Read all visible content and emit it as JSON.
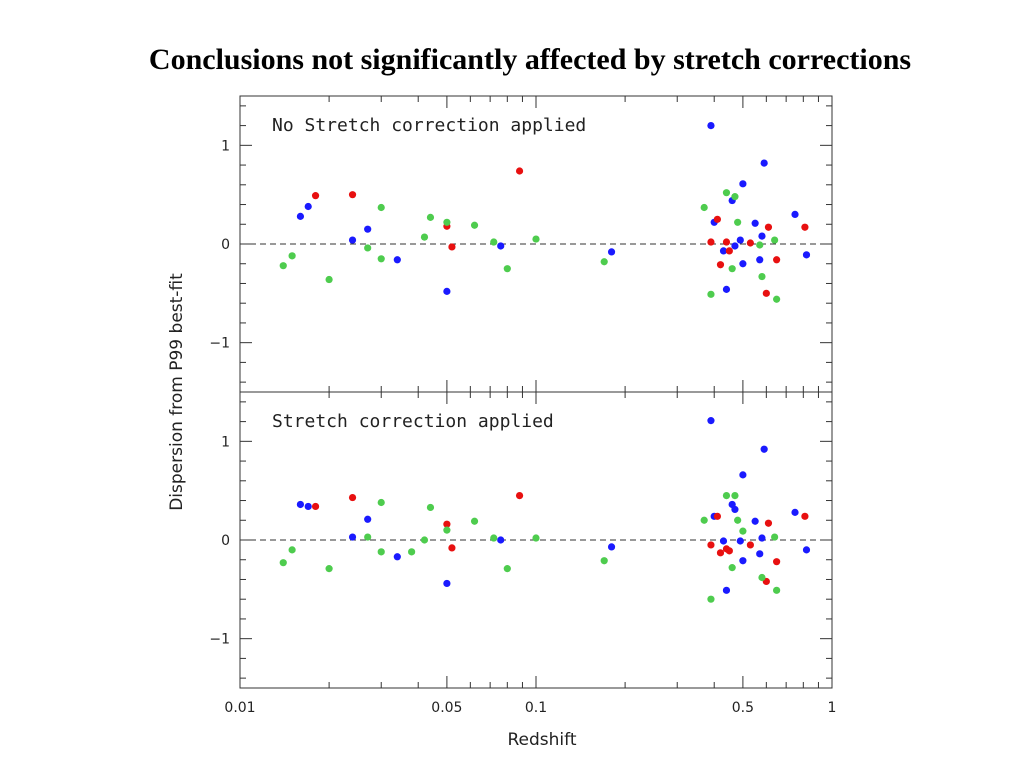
{
  "title": "Conclusions not significantly affected by stretch corrections",
  "chart_data": [
    {
      "type": "scatter",
      "panel_label": "No Stretch correction applied",
      "xlabel": "Redshift",
      "ylabel": "Dispersion from P99 best-fit",
      "xscale": "log",
      "xlim": [
        0.01,
        1
      ],
      "ylim": [
        -1.5,
        1.5
      ],
      "xticks": [
        "0.01",
        "0.05",
        "0.1",
        "0.5",
        "1"
      ],
      "yticks": [
        "1",
        "0",
        "−1"
      ],
      "reference_line": 0,
      "series": [
        {
          "color": "#1a1aff",
          "points": [
            [
              0.016,
              0.28
            ],
            [
              0.017,
              0.38
            ],
            [
              0.024,
              0.04
            ],
            [
              0.027,
              0.15
            ],
            [
              0.034,
              -0.16
            ],
            [
              0.05,
              -0.48
            ],
            [
              0.076,
              -0.02
            ],
            [
              0.18,
              -0.08
            ],
            [
              0.39,
              1.2
            ],
            [
              0.4,
              0.22
            ],
            [
              0.43,
              -0.07
            ],
            [
              0.44,
              -0.46
            ],
            [
              0.46,
              0.44
            ],
            [
              0.47,
              -0.02
            ],
            [
              0.49,
              0.04
            ],
            [
              0.5,
              -0.2
            ],
            [
              0.5,
              0.61
            ],
            [
              0.55,
              0.21
            ],
            [
              0.57,
              -0.16
            ],
            [
              0.58,
              0.08
            ],
            [
              0.59,
              0.82
            ],
            [
              0.75,
              0.3
            ],
            [
              0.82,
              -0.11
            ]
          ]
        },
        {
          "color": "#e81010",
          "points": [
            [
              0.018,
              0.49
            ],
            [
              0.024,
              0.5
            ],
            [
              0.05,
              0.18
            ],
            [
              0.052,
              -0.03
            ],
            [
              0.088,
              0.74
            ],
            [
              0.39,
              0.02
            ],
            [
              0.41,
              0.25
            ],
            [
              0.42,
              -0.21
            ],
            [
              0.44,
              0.02
            ],
            [
              0.45,
              -0.07
            ],
            [
              0.53,
              0.01
            ],
            [
              0.6,
              -0.5
            ],
            [
              0.61,
              0.17
            ],
            [
              0.65,
              -0.16
            ],
            [
              0.81,
              0.17
            ]
          ]
        },
        {
          "color": "#4ecc4e",
          "points": [
            [
              0.014,
              -0.22
            ],
            [
              0.015,
              -0.12
            ],
            [
              0.02,
              -0.36
            ],
            [
              0.027,
              -0.04
            ],
            [
              0.03,
              0.37
            ],
            [
              0.03,
              -0.15
            ],
            [
              0.042,
              0.07
            ],
            [
              0.044,
              0.27
            ],
            [
              0.05,
              0.22
            ],
            [
              0.062,
              0.19
            ],
            [
              0.072,
              0.02
            ],
            [
              0.08,
              -0.25
            ],
            [
              0.1,
              0.05
            ],
            [
              0.17,
              -0.18
            ],
            [
              0.37,
              0.37
            ],
            [
              0.39,
              -0.51
            ],
            [
              0.44,
              0.52
            ],
            [
              0.46,
              -0.25
            ],
            [
              0.47,
              0.48
            ],
            [
              0.48,
              0.22
            ],
            [
              0.57,
              -0.01
            ],
            [
              0.58,
              -0.33
            ],
            [
              0.64,
              0.04
            ],
            [
              0.65,
              -0.56
            ]
          ]
        }
      ]
    },
    {
      "type": "scatter",
      "panel_label": "Stretch correction applied",
      "xlabel": "Redshift",
      "ylabel": "Dispersion from P99 best-fit",
      "xscale": "log",
      "xlim": [
        0.01,
        1
      ],
      "ylim": [
        -1.5,
        1.5
      ],
      "xticks": [
        "0.01",
        "0.05",
        "0.1",
        "0.5",
        "1"
      ],
      "yticks": [
        "1",
        "0",
        "−1"
      ],
      "reference_line": 0,
      "series": [
        {
          "color": "#1a1aff",
          "points": [
            [
              0.016,
              0.36
            ],
            [
              0.017,
              0.34
            ],
            [
              0.024,
              0.03
            ],
            [
              0.027,
              0.21
            ],
            [
              0.034,
              -0.17
            ],
            [
              0.05,
              -0.44
            ],
            [
              0.076,
              0.0
            ],
            [
              0.18,
              -0.07
            ],
            [
              0.39,
              1.21
            ],
            [
              0.4,
              0.24
            ],
            [
              0.43,
              -0.01
            ],
            [
              0.44,
              -0.51
            ],
            [
              0.46,
              0.36
            ],
            [
              0.47,
              0.31
            ],
            [
              0.49,
              -0.01
            ],
            [
              0.5,
              -0.21
            ],
            [
              0.5,
              0.66
            ],
            [
              0.55,
              0.19
            ],
            [
              0.57,
              -0.14
            ],
            [
              0.58,
              0.02
            ],
            [
              0.59,
              0.92
            ],
            [
              0.75,
              0.28
            ],
            [
              0.82,
              -0.1
            ]
          ]
        },
        {
          "color": "#e81010",
          "points": [
            [
              0.018,
              0.34
            ],
            [
              0.024,
              0.43
            ],
            [
              0.05,
              0.16
            ],
            [
              0.052,
              -0.08
            ],
            [
              0.088,
              0.45
            ],
            [
              0.39,
              -0.05
            ],
            [
              0.41,
              0.24
            ],
            [
              0.42,
              -0.13
            ],
            [
              0.44,
              -0.09
            ],
            [
              0.45,
              -0.11
            ],
            [
              0.53,
              -0.05
            ],
            [
              0.6,
              -0.42
            ],
            [
              0.61,
              0.17
            ],
            [
              0.65,
              -0.22
            ],
            [
              0.81,
              0.24
            ]
          ]
        },
        {
          "color": "#4ecc4e",
          "points": [
            [
              0.014,
              -0.23
            ],
            [
              0.015,
              -0.1
            ],
            [
              0.02,
              -0.29
            ],
            [
              0.027,
              0.03
            ],
            [
              0.03,
              0.38
            ],
            [
              0.03,
              -0.12
            ],
            [
              0.038,
              -0.12
            ],
            [
              0.042,
              0.0
            ],
            [
              0.044,
              0.33
            ],
            [
              0.05,
              0.1
            ],
            [
              0.062,
              0.19
            ],
            [
              0.072,
              0.02
            ],
            [
              0.08,
              -0.29
            ],
            [
              0.1,
              0.02
            ],
            [
              0.17,
              -0.21
            ],
            [
              0.37,
              0.2
            ],
            [
              0.39,
              -0.6
            ],
            [
              0.44,
              0.45
            ],
            [
              0.46,
              -0.28
            ],
            [
              0.47,
              0.45
            ],
            [
              0.48,
              0.2
            ],
            [
              0.5,
              0.09
            ],
            [
              0.58,
              -0.38
            ],
            [
              0.64,
              0.03
            ],
            [
              0.65,
              -0.51
            ]
          ]
        }
      ]
    }
  ]
}
